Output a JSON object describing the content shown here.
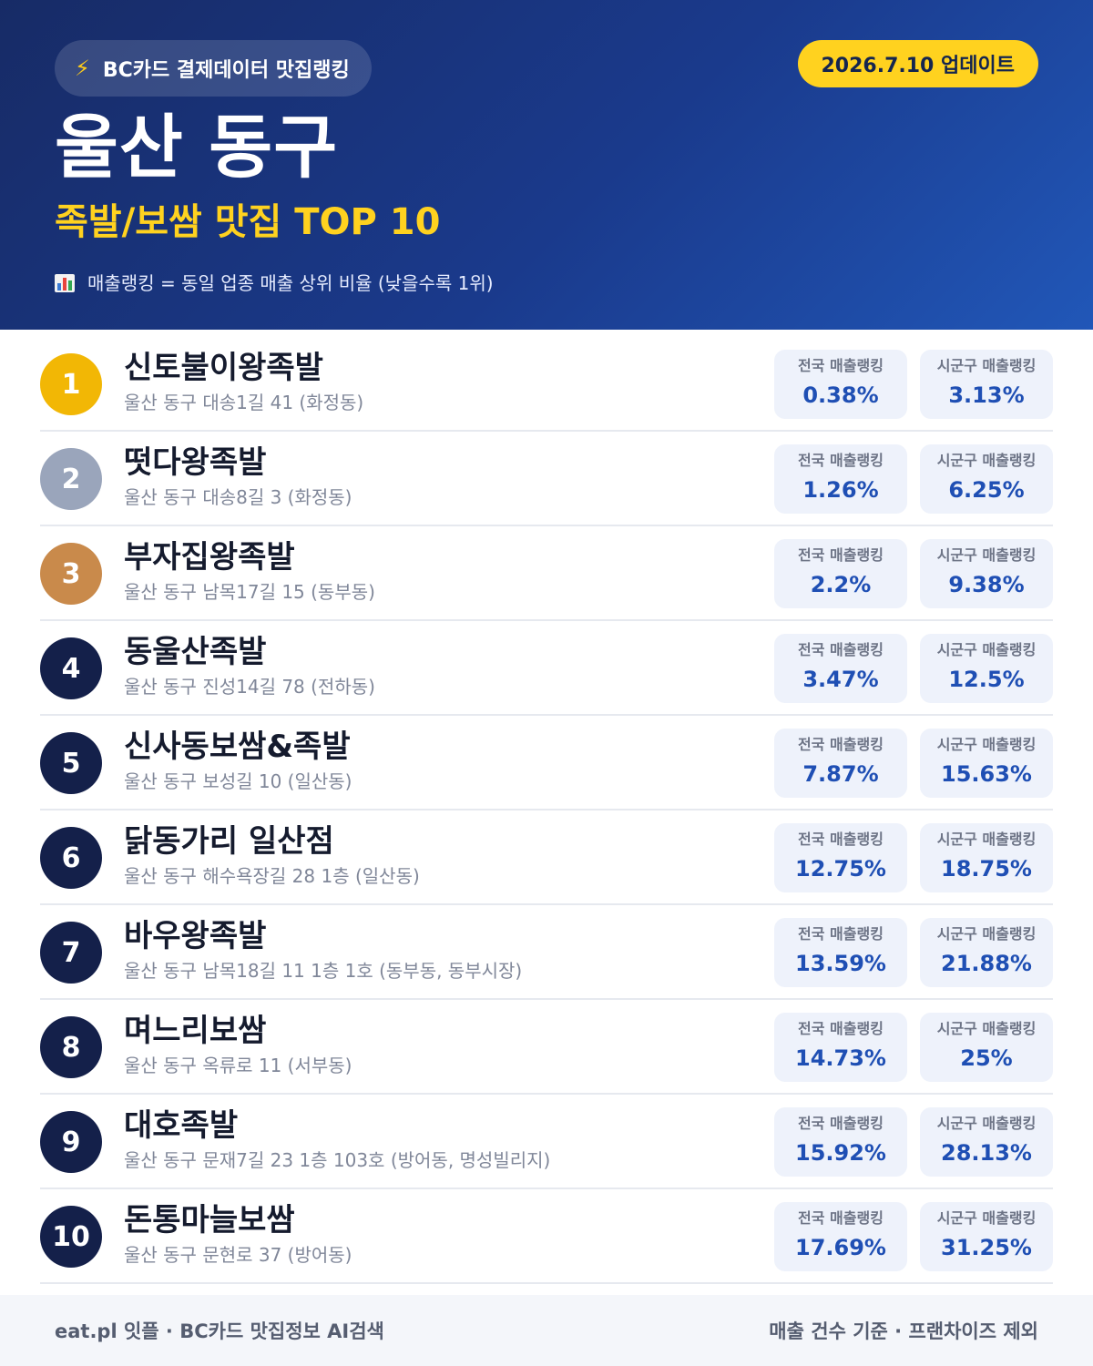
{
  "header": {
    "badge_icon": "lightning-bolt-icon",
    "badge_label": "BC카드 결제데이터 맛집랭킹",
    "update_label": "2026.7.10 업데이트",
    "region_title": "울산 동구",
    "subtitle": "족발/보쌈 맛집 TOP 10",
    "note_icon": "bar-chart-icon",
    "note": "매출랭킹 = 동일 업종 매출 상위 비율 (낮을수록 1위)"
  },
  "colors": {
    "header_start": "#172b66",
    "header_end": "#2157b8",
    "accent_yellow": "#ffd21f",
    "rank_gold": "#f2b705",
    "rank_silver": "#9aa5bb",
    "rank_bronze": "#c98a4b",
    "rank_default": "#14204a",
    "value_blue": "#1f4fb4"
  },
  "labels": {
    "national": "전국 매출랭킹",
    "local": "시군구 매출랭킹"
  },
  "restaurants": [
    {
      "rank": "1",
      "name": "신토불이왕족발",
      "address": "울산 동구 대송1길 41 (화정동)",
      "national": "0.38%",
      "local": "3.13%"
    },
    {
      "rank": "2",
      "name": "떳다왕족발",
      "address": "울산 동구 대송8길 3 (화정동)",
      "national": "1.26%",
      "local": "6.25%"
    },
    {
      "rank": "3",
      "name": "부자집왕족발",
      "address": "울산 동구 남목17길 15 (동부동)",
      "national": "2.2%",
      "local": "9.38%"
    },
    {
      "rank": "4",
      "name": "동울산족발",
      "address": "울산 동구 진성14길 78 (전하동)",
      "national": "3.47%",
      "local": "12.5%"
    },
    {
      "rank": "5",
      "name": "신사동보쌈&족발",
      "address": "울산 동구 보성길 10 (일산동)",
      "national": "7.87%",
      "local": "15.63%"
    },
    {
      "rank": "6",
      "name": "닭동가리 일산점",
      "address": "울산 동구 해수욕장길 28 1층 (일산동)",
      "national": "12.75%",
      "local": "18.75%"
    },
    {
      "rank": "7",
      "name": "바우왕족발",
      "address": "울산 동구 남목18길 11 1층 1호 (동부동, 동부시장)",
      "national": "13.59%",
      "local": "21.88%"
    },
    {
      "rank": "8",
      "name": "며느리보쌈",
      "address": "울산 동구 옥류로 11 (서부동)",
      "national": "14.73%",
      "local": "25%"
    },
    {
      "rank": "9",
      "name": "대호족발",
      "address": "울산 동구 문재7길 23 1층 103호 (방어동, 명성빌리지)",
      "national": "15.92%",
      "local": "28.13%"
    },
    {
      "rank": "10",
      "name": "돈통마늘보쌈",
      "address": "울산 동구 문현로 37 (방어동)",
      "national": "17.69%",
      "local": "31.25%"
    }
  ],
  "footer": {
    "left": "eat.pl 잇플 · BC카드 맛집정보 AI검색",
    "right": "매출 건수 기준 · 프랜차이즈 제외"
  }
}
